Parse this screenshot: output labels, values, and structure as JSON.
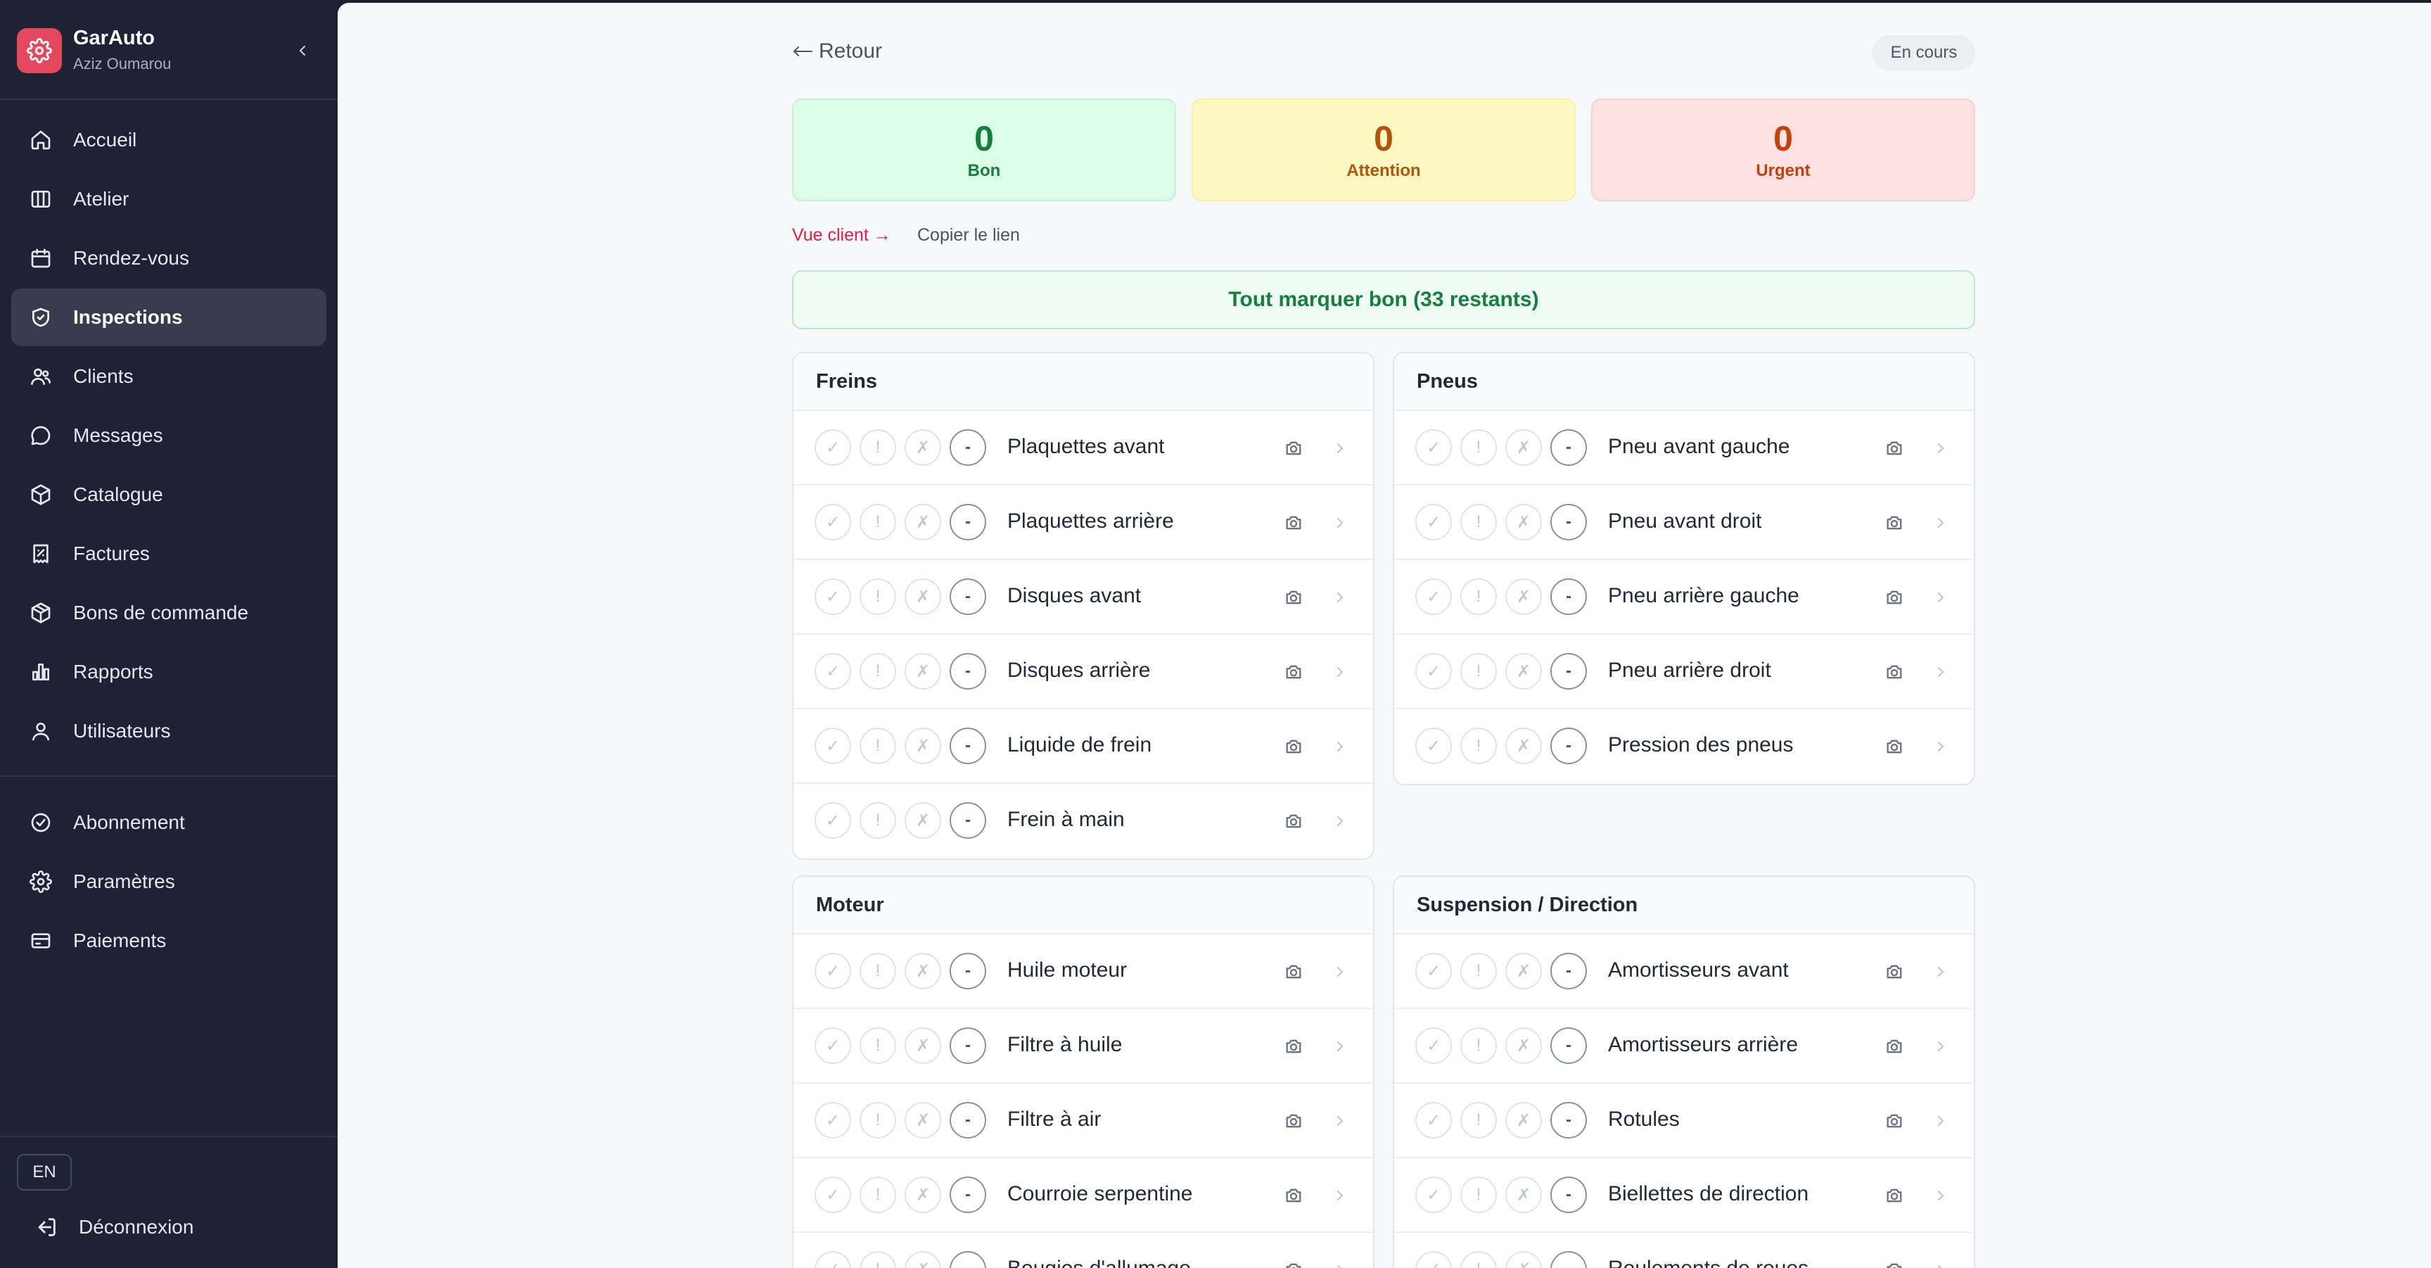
{
  "brand": {
    "name": "GarAuto",
    "user": "Aziz Oumarou",
    "accent": "#e5485e"
  },
  "sidebar": {
    "items": [
      {
        "label": "Accueil",
        "icon": "home-icon"
      },
      {
        "label": "Atelier",
        "icon": "columns-icon"
      },
      {
        "label": "Rendez-vous",
        "icon": "calendar-icon"
      },
      {
        "label": "Inspections",
        "icon": "shield-check-icon",
        "active": true
      },
      {
        "label": "Clients",
        "icon": "users-icon"
      },
      {
        "label": "Messages",
        "icon": "message-icon"
      },
      {
        "label": "Catalogue",
        "icon": "box-icon"
      },
      {
        "label": "Factures",
        "icon": "receipt-icon"
      },
      {
        "label": "Bons de commande",
        "icon": "package-icon"
      },
      {
        "label": "Rapports",
        "icon": "bar-chart-icon"
      },
      {
        "label": "Utilisateurs",
        "icon": "user-icon"
      }
    ],
    "secondary": [
      {
        "label": "Abonnement",
        "icon": "check-circle-icon"
      },
      {
        "label": "Paramètres",
        "icon": "gear-icon"
      },
      {
        "label": "Paiements",
        "icon": "credit-card-icon"
      }
    ],
    "lang": "EN",
    "logout": "Déconnexion"
  },
  "header": {
    "back": "Retour",
    "status": "En cours"
  },
  "stats": {
    "good": {
      "value": "0",
      "label": "Bon"
    },
    "warn": {
      "value": "0",
      "label": "Attention"
    },
    "urgent": {
      "value": "0",
      "label": "Urgent"
    }
  },
  "links": {
    "client_view": "Vue client →",
    "copy": "Copier le lien"
  },
  "mark_all": "Tout marquer bon (33 restants)",
  "status_buttons": {
    "good": "✓",
    "warn": "!",
    "bad": "✗",
    "na": "-"
  },
  "sections": [
    {
      "title": "Freins",
      "items": [
        "Plaquettes avant",
        "Plaquettes arrière",
        "Disques avant",
        "Disques arrière",
        "Liquide de frein",
        "Frein à main"
      ]
    },
    {
      "title": "Pneus",
      "items": [
        "Pneu avant gauche",
        "Pneu avant droit",
        "Pneu arrière gauche",
        "Pneu arrière droit",
        "Pression des pneus"
      ]
    },
    {
      "title": "Moteur",
      "items": [
        "Huile moteur",
        "Filtre à huile",
        "Filtre à air",
        "Courroie serpentine",
        "Bougies d'allumage"
      ]
    },
    {
      "title": "Suspension / Direction",
      "items": [
        "Amortisseurs avant",
        "Amortisseurs arrière",
        "Rotules",
        "Biellettes de direction",
        "Roulements de roues"
      ]
    }
  ]
}
